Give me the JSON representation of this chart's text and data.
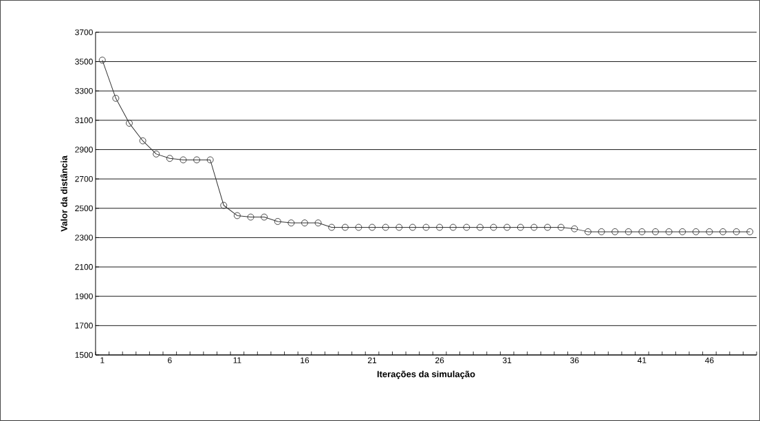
{
  "chart_data": {
    "type": "line",
    "xlabel": "Iterações da simulação",
    "ylabel": "Valor da distância",
    "categories": [
      "1",
      null,
      null,
      null,
      null,
      "6",
      null,
      null,
      null,
      null,
      "11",
      null,
      null,
      null,
      null,
      "16",
      null,
      null,
      null,
      null,
      "21",
      null,
      null,
      null,
      null,
      "26",
      null,
      null,
      null,
      null,
      "31",
      null,
      null,
      null,
      null,
      "36",
      null,
      null,
      null,
      null,
      "41",
      null,
      null,
      null,
      null,
      "46",
      null,
      null,
      null
    ],
    "series": [
      {
        "color": "#333333",
        "values": [
          3510,
          3250,
          3080,
          2960,
          2870,
          2840,
          2830,
          2830,
          2830,
          2520,
          2450,
          2440,
          2440,
          2410,
          2400,
          2400,
          2400,
          2370,
          2370,
          2370,
          2370,
          2370,
          2370,
          2370,
          2370,
          2370,
          2370,
          2370,
          2370,
          2370,
          2370,
          2370,
          2370,
          2370,
          2370,
          2360,
          2340,
          2340,
          2340,
          2340,
          2340,
          2340,
          2340,
          2340,
          2340,
          2340,
          2340,
          2340,
          2340
        ]
      }
    ],
    "ylim": [
      1500,
      3700
    ],
    "yticks": [
      1500,
      1700,
      1900,
      2100,
      2300,
      2500,
      2700,
      2900,
      3100,
      3300,
      3500,
      3700
    ],
    "grid": "y",
    "marker": "circle",
    "line_style": "solid"
  }
}
